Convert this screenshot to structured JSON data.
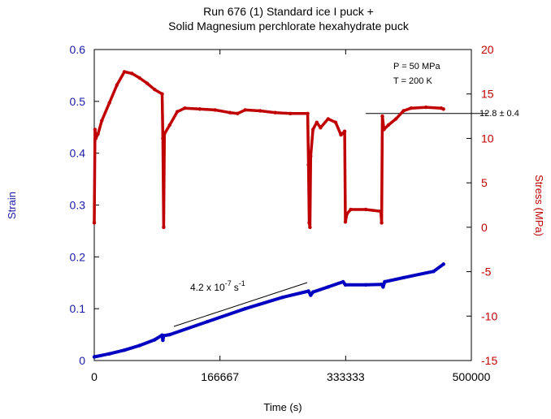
{
  "chart_data": {
    "type": "line",
    "title": [
      "Run 676 (1) Standard ice I puck +",
      "Solid Magnesium perchlorate hexahydrate puck"
    ],
    "xlabel": "Time (s)",
    "ylabel_left": "Strain",
    "ylabel_right": "Stress (MPa)",
    "xlim": [
      0,
      500000
    ],
    "ylim_left": [
      0,
      0.6
    ],
    "ylim_right": [
      -15,
      20
    ],
    "x_ticks": [
      "0",
      "166667",
      "333333",
      "500000"
    ],
    "y_left_ticks": [
      "0",
      "0.1",
      "0.2",
      "0.3",
      "0.4",
      "0.5",
      "0.6"
    ],
    "y_right_ticks": [
      "-15",
      "-10",
      "-5",
      "0",
      "5",
      "10",
      "15",
      "20"
    ],
    "colors": {
      "strain": "#0000c0",
      "stress": "#c00000",
      "left_axis": "#1a1aa8",
      "right_axis": "#c00000"
    },
    "annotations": {
      "conditions": [
        "P = 50 MPa",
        "T = 200 K"
      ],
      "stress_value": "12.8 ± 0.4",
      "stress_reference": 12.8,
      "rate_text": "4.2 x 10",
      "rate_exp": "-7",
      "rate_unit": "s",
      "rate_unit_exp": "-1"
    },
    "series": [
      {
        "name": "Strain",
        "axis": "left",
        "points": [
          [
            0,
            0.007
          ],
          [
            20000,
            0.013
          ],
          [
            40000,
            0.02
          ],
          [
            60000,
            0.029
          ],
          [
            80000,
            0.04
          ],
          [
            90000,
            0.049
          ],
          [
            91000,
            0.039
          ],
          [
            92000,
            0.048
          ],
          [
            100000,
            0.05
          ],
          [
            150000,
            0.075
          ],
          [
            200000,
            0.1
          ],
          [
            250000,
            0.122
          ],
          [
            284000,
            0.134
          ],
          [
            287000,
            0.126
          ],
          [
            290000,
            0.132
          ],
          [
            310000,
            0.142
          ],
          [
            330000,
            0.152
          ],
          [
            333000,
            0.146
          ],
          [
            360000,
            0.146
          ],
          [
            381000,
            0.147
          ],
          [
            383000,
            0.142
          ],
          [
            385000,
            0.152
          ],
          [
            410000,
            0.16
          ],
          [
            450000,
            0.172
          ],
          [
            463000,
            0.186
          ]
        ]
      },
      {
        "name": "Stress",
        "axis": "right",
        "points": [
          [
            0,
            0.5
          ],
          [
            1000,
            11
          ],
          [
            2000,
            10
          ],
          [
            5000,
            10.5
          ],
          [
            10000,
            12
          ],
          [
            20000,
            14
          ],
          [
            30000,
            16
          ],
          [
            40000,
            17.5
          ],
          [
            50000,
            17.3
          ],
          [
            60000,
            16.8
          ],
          [
            70000,
            16.2
          ],
          [
            80000,
            15.5
          ],
          [
            90000,
            15
          ],
          [
            91000,
            10
          ],
          [
            92000,
            0
          ],
          [
            93000,
            10.5
          ],
          [
            100000,
            11.5
          ],
          [
            110000,
            13
          ],
          [
            120000,
            13.4
          ],
          [
            140000,
            13.3
          ],
          [
            160000,
            13.2
          ],
          [
            180000,
            12.9
          ],
          [
            190000,
            12.8
          ],
          [
            200000,
            13.2
          ],
          [
            220000,
            13.1
          ],
          [
            240000,
            12.9
          ],
          [
            260000,
            12.8
          ],
          [
            283000,
            12.8
          ],
          [
            284000,
            7
          ],
          [
            285000,
            0.5
          ],
          [
            286000,
            0
          ],
          [
            287000,
            8
          ],
          [
            290000,
            11
          ],
          [
            295000,
            11.8
          ],
          [
            300000,
            11.2
          ],
          [
            310000,
            12.2
          ],
          [
            320000,
            11.8
          ],
          [
            327000,
            10.4
          ],
          [
            330000,
            10.6
          ],
          [
            332000,
            10.8
          ],
          [
            333000,
            0.6
          ],
          [
            335000,
            1.5
          ],
          [
            340000,
            2
          ],
          [
            360000,
            2
          ],
          [
            380000,
            1.8
          ],
          [
            381000,
            0.5
          ],
          [
            382000,
            12.5
          ],
          [
            384000,
            11
          ],
          [
            390000,
            11.5
          ],
          [
            400000,
            12.2
          ],
          [
            410000,
            13.1
          ],
          [
            420000,
            13.4
          ],
          [
            440000,
            13.5
          ],
          [
            460000,
            13.4
          ],
          [
            463000,
            13.3
          ]
        ]
      }
    ]
  }
}
